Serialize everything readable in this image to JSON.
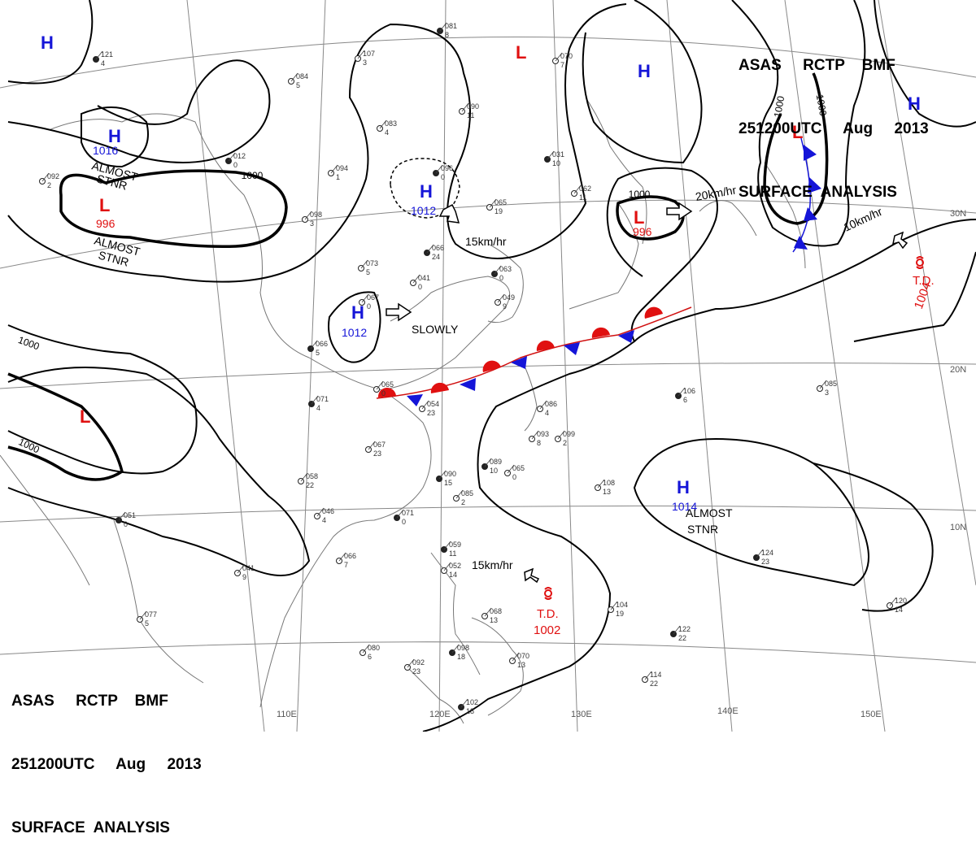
{
  "header": {
    "line1": "ASAS     RCTP    BMF",
    "line2": "251200UTC     Aug     2013",
    "line3": "SURFACE  ANALYSIS"
  },
  "colors": {
    "high": "#1515d8",
    "low": "#e01010",
    "isobar": "#000000",
    "grid": "#888888",
    "coast": "#777777"
  },
  "grid_labels": {
    "lon": [
      "110E",
      "120E",
      "130E",
      "140E",
      "150E"
    ],
    "lat": [
      "30N",
      "20N",
      "10N"
    ]
  },
  "systems": {
    "h1_letter": "H",
    "h2_letter": "H",
    "h2_pressure": "1016",
    "h2_note1": "ALMOST",
    "h2_note2": "STNR",
    "h3_letter": "H",
    "h3_pressure": "1012",
    "h4_letter": "H",
    "h4_pressure": "1012",
    "h4_motion": "SLOWLY",
    "h5_letter": "H",
    "h6_letter": "H",
    "h7_letter": "H",
    "h7_pressure": "1014",
    "h7_note1": "ALMOST",
    "h7_note2": "STNR",
    "l1_letter": "L",
    "l1_pressure": "996",
    "l1_note1": "ALMOST",
    "l1_note2": "STNR",
    "l2_letter": "L",
    "l3_letter": "L",
    "l4_letter": "L",
    "l4_pressure": "996",
    "l4_motion": "20km/hr",
    "l5_letter": "L",
    "h3_motion": "15km/hr",
    "td1_label": "T.D.",
    "td1_pressure": "1004",
    "td1_motion": "10km/hr",
    "td2_label": "T.D.",
    "td2_pressure": "1002",
    "td2_motion": "15km/hr"
  },
  "isobar_labels": {
    "a": "1000",
    "b": "1000",
    "c": "1000",
    "d": "1000",
    "e": "1000",
    "f": "1000"
  },
  "stations": [
    [
      "121",
      "4"
    ],
    [
      "107",
      "3"
    ],
    [
      "084",
      "5"
    ],
    [
      "081",
      "8"
    ],
    [
      "070",
      "7"
    ],
    [
      "083",
      "4"
    ],
    [
      "096",
      "0"
    ],
    [
      "065",
      "19"
    ],
    [
      "062",
      "11"
    ],
    [
      "031",
      "10"
    ],
    [
      "094",
      "1"
    ],
    [
      "098",
      "3"
    ],
    [
      "012",
      "0"
    ],
    [
      "092",
      "2"
    ],
    [
      "090",
      "11"
    ],
    [
      "066",
      "24"
    ],
    [
      "073",
      "5"
    ],
    [
      "041",
      "0"
    ],
    [
      "063",
      "0"
    ],
    [
      "049",
      "9"
    ],
    [
      "067",
      "0"
    ],
    [
      "066",
      "5"
    ],
    [
      "065",
      "0"
    ],
    [
      "054",
      "23"
    ],
    [
      "071",
      "4"
    ],
    [
      "067",
      "23"
    ],
    [
      "093",
      "8"
    ],
    [
      "089",
      "10"
    ],
    [
      "086",
      "4"
    ],
    [
      "099",
      "2"
    ],
    [
      "090",
      "15"
    ],
    [
      "085",
      "2"
    ],
    [
      "065",
      "0"
    ],
    [
      "071",
      "0"
    ],
    [
      "058",
      "22"
    ],
    [
      "046",
      "4"
    ],
    [
      "051",
      "0"
    ],
    [
      "041",
      "9"
    ],
    [
      "066",
      "7"
    ],
    [
      "059",
      "11"
    ],
    [
      "052",
      "14"
    ],
    [
      "068",
      "13"
    ],
    [
      "098",
      "18"
    ],
    [
      "070",
      "13"
    ],
    [
      "092",
      "23"
    ],
    [
      "102",
      "18"
    ],
    [
      "080",
      "6"
    ],
    [
      "077",
      "5"
    ],
    [
      "106",
      "6"
    ],
    [
      "085",
      "3"
    ],
    [
      "108",
      "13"
    ],
    [
      "124",
      "23"
    ],
    [
      "120",
      "14"
    ],
    [
      "104",
      "19"
    ],
    [
      "122",
      "22"
    ],
    [
      "114",
      "22"
    ]
  ]
}
